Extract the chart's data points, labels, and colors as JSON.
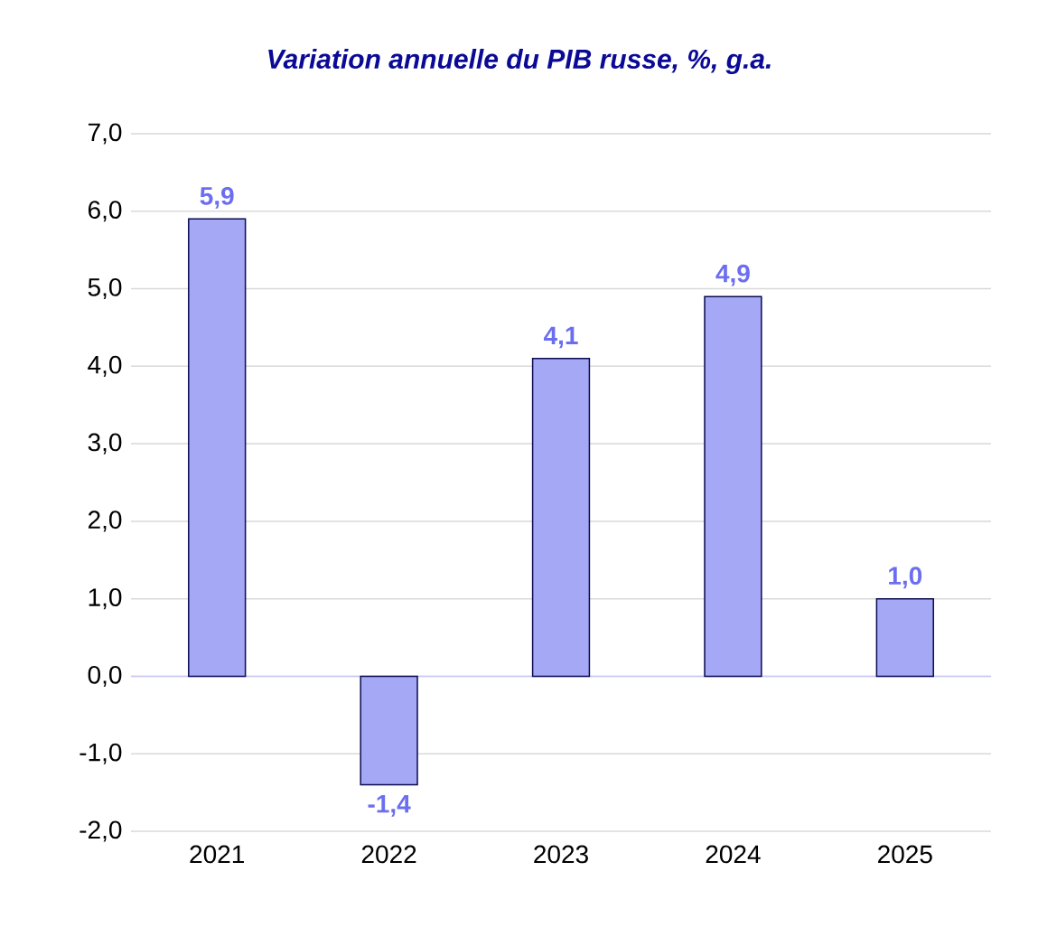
{
  "chart_data": {
    "type": "bar",
    "title": "Variation annuelle du PIB russe, %, g.a.",
    "categories": [
      "2021",
      "2022",
      "2023",
      "2024",
      "2025"
    ],
    "values": [
      5.9,
      -1.4,
      4.1,
      4.9,
      1.0
    ],
    "value_labels": [
      "5,9",
      "-1,4",
      "4,1",
      "4,9",
      "1,0"
    ],
    "color": "#a5a8f5",
    "ylim": [
      -2,
      7
    ],
    "yticks": [
      {
        "value": -2,
        "label": "-2,0"
      },
      {
        "value": -1,
        "label": "-1,0"
      },
      {
        "value": 0,
        "label": "0,0"
      },
      {
        "value": 1,
        "label": "1,0"
      },
      {
        "value": 2,
        "label": "2,0"
      },
      {
        "value": 3,
        "label": "3,0"
      },
      {
        "value": 4,
        "label": "4,0"
      },
      {
        "value": 5,
        "label": "5,0"
      },
      {
        "value": 6,
        "label": "6,0"
      },
      {
        "value": 7,
        "label": "7,0"
      }
    ],
    "grid": "y",
    "ref_lines": [
      {
        "axis": "y",
        "value": 0,
        "color": "#c8c8f5"
      }
    ]
  }
}
